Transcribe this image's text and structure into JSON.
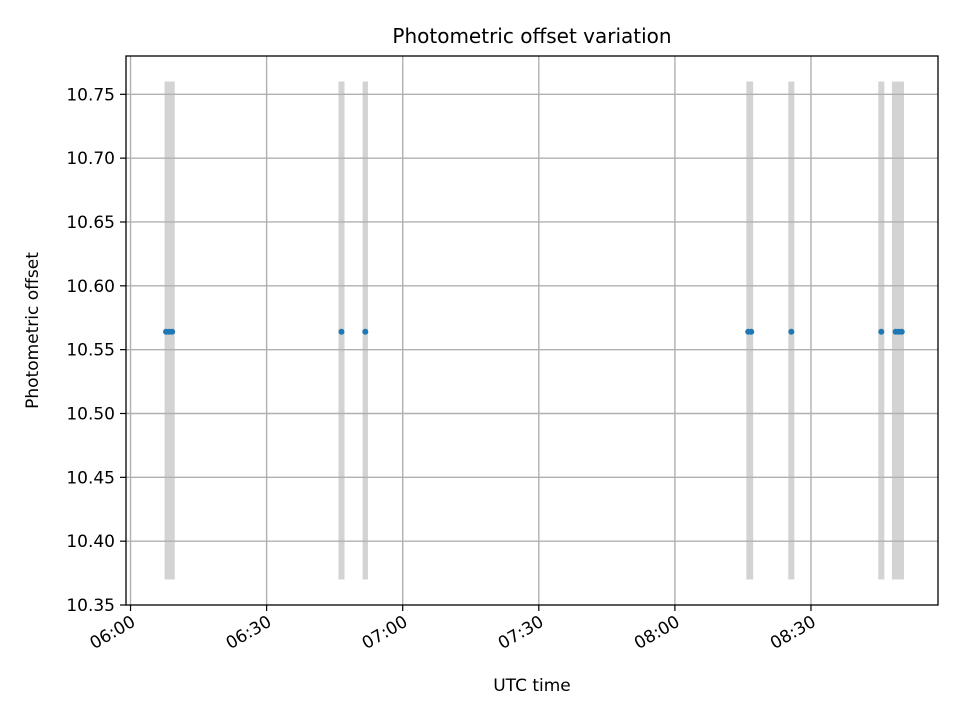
{
  "chart_data": {
    "type": "scatter",
    "title": "Photometric offset variation",
    "xlabel": "UTC time",
    "ylabel": "Photometric offset",
    "x_axis_type": "time",
    "xlim": [
      "05:59",
      "08:58"
    ],
    "ylim": [
      10.35,
      10.78
    ],
    "grid": true,
    "x_ticks": [
      "06:00",
      "06:30",
      "07:00",
      "07:30",
      "08:00",
      "08:30"
    ],
    "y_ticks": [
      "10.35",
      "10.40",
      "10.45",
      "10.50",
      "10.55",
      "10.60",
      "10.65",
      "10.70",
      "10.75"
    ],
    "exposure_band_range": [
      10.37,
      10.76
    ],
    "exposure_bands": [
      {
        "start": "06:07:30",
        "end": "06:09:45"
      },
      {
        "start": "06:45:50",
        "end": "06:47:10"
      },
      {
        "start": "06:51:10",
        "end": "06:52:20"
      },
      {
        "start": "08:15:45",
        "end": "08:17:15"
      },
      {
        "start": "08:25:00",
        "end": "08:26:20"
      },
      {
        "start": "08:44:50",
        "end": "08:46:10"
      },
      {
        "start": "08:47:50",
        "end": "08:50:30"
      }
    ],
    "points": [
      {
        "x": "06:07:50",
        "y": 10.564
      },
      {
        "x": "06:08:30",
        "y": 10.564
      },
      {
        "x": "06:09:10",
        "y": 10.564
      },
      {
        "x": "06:46:30",
        "y": 10.564
      },
      {
        "x": "06:51:45",
        "y": 10.564
      },
      {
        "x": "08:16:10",
        "y": 10.564
      },
      {
        "x": "08:16:50",
        "y": 10.564
      },
      {
        "x": "08:25:40",
        "y": 10.564
      },
      {
        "x": "08:45:30",
        "y": 10.564
      },
      {
        "x": "08:48:40",
        "y": 10.564
      },
      {
        "x": "08:49:20",
        "y": 10.564
      },
      {
        "x": "08:50:00",
        "y": 10.564
      }
    ],
    "colors": {
      "points": "#1f77b4",
      "bands": "#d3d3d3",
      "grid": "#b0b0b0",
      "axes": "#000000"
    }
  }
}
